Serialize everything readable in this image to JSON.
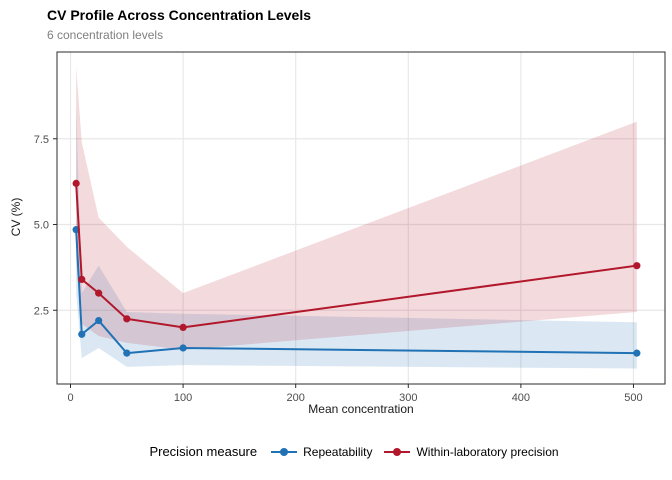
{
  "header": {
    "title": "CV Profile Across Concentration Levels",
    "subtitle": "6 concentration levels"
  },
  "chart_data": {
    "type": "line",
    "title": "CV Profile Across Concentration Levels",
    "subtitle": "6 concentration levels",
    "xlabel": "Mean concentration",
    "ylabel": "CV (%)",
    "x": [
      5,
      10,
      25,
      50,
      100,
      503
    ],
    "series": [
      {
        "name": "Repeatability",
        "color": "#2171b5",
        "cv": [
          4.85,
          1.8,
          2.2,
          1.25,
          1.4,
          1.25
        ],
        "ci_lower": [
          3.0,
          1.1,
          1.4,
          0.85,
          0.9,
          0.8
        ],
        "ci_upper": [
          8.5,
          3.0,
          3.8,
          2.45,
          2.4,
          2.15
        ]
      },
      {
        "name": "Within-laboratory precision",
        "color": "#b2182b",
        "cv": [
          6.2,
          3.4,
          3.0,
          2.25,
          2.0,
          3.8
        ],
        "ci_lower": [
          3.9,
          2.1,
          1.75,
          1.55,
          1.35,
          2.45
        ],
        "ci_upper": [
          9.6,
          7.4,
          5.2,
          4.35,
          3.0,
          8.0
        ]
      }
    ],
    "x_ticks": [
      {
        "value": 0,
        "label": "0"
      },
      {
        "value": 100,
        "label": "100"
      },
      {
        "value": 200,
        "label": "200"
      },
      {
        "value": 300,
        "label": "300"
      },
      {
        "value": 400,
        "label": "400"
      },
      {
        "value": 500,
        "label": "500"
      }
    ],
    "y_ticks": [
      {
        "value": 2.5,
        "label": "2.5"
      },
      {
        "value": 5.0,
        "label": "5.0"
      },
      {
        "value": 7.5,
        "label": "7.5"
      }
    ],
    "xlim": [
      -12,
      528
    ],
    "ylim": [
      0.35,
      10.03
    ],
    "grid": "major-only",
    "band_opacity": 0.16,
    "legend_title": "Precision measure",
    "legend_position": "bottom"
  },
  "legend": {
    "title": "Precision measure",
    "items": [
      {
        "label": "Repeatability"
      },
      {
        "label": "Within-laboratory precision"
      }
    ]
  },
  "colors": {
    "repeatability": "#2171b5",
    "within_lab": "#b2182b",
    "gridline": "#e8e8e8",
    "panel_border": "#2b2b2b",
    "tick_text": "#4d4d4d",
    "subtitle_text": "#7f7f7f"
  }
}
